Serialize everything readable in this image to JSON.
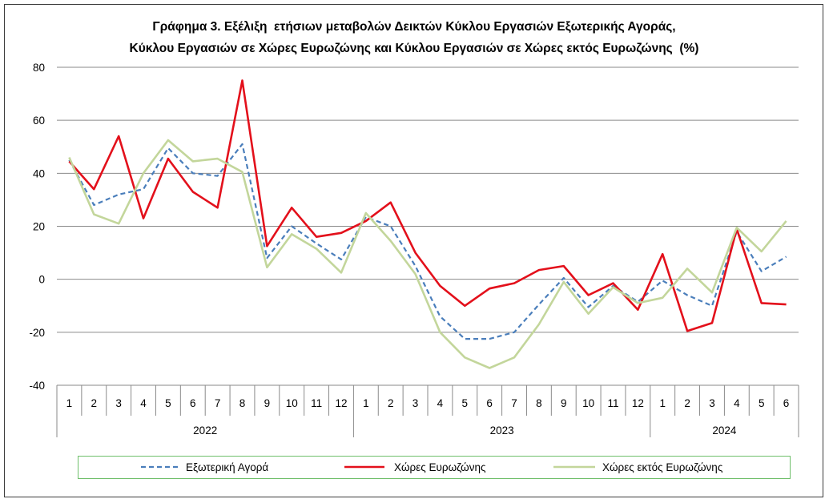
{
  "chart_data": {
    "type": "line",
    "title": [
      "Γράφημα 3. Εξέλιξη  ετήσιων μεταβολών Δεικτών Κύκλου Εργασιών Εξωτερικής Αγοράς,",
      "Κύκλου Εργασιών σε Χώρες Ευρωζώνης και Κύκλου Εργασιών σε Χώρες εκτός Ευρωζώνης  (%)"
    ],
    "xlabel": "",
    "ylabel": "",
    "ylim": [
      -40,
      80
    ],
    "yticks": [
      "80",
      "60",
      "40",
      "20",
      "0",
      "-20",
      "-40"
    ],
    "grid": true,
    "legend": "bottom",
    "groups": [
      {
        "label": "2022",
        "months": [
          "1",
          "2",
          "3",
          "4",
          "5",
          "6",
          "7",
          "8",
          "9",
          "10",
          "11",
          "12"
        ]
      },
      {
        "label": "2023",
        "months": [
          "1",
          "2",
          "3",
          "4",
          "5",
          "6",
          "7",
          "8",
          "9",
          "10",
          "11",
          "12"
        ]
      },
      {
        "label": "2024",
        "months": [
          "1",
          "2",
          "3",
          "4",
          "5",
          "6"
        ]
      }
    ],
    "series": [
      {
        "name": "Εξωτερική Αγορά",
        "color": "#4a7ebb",
        "style": "dashed",
        "values": [
          45,
          28,
          32,
          34,
          49.5,
          40,
          39,
          51,
          8,
          20,
          13.5,
          7.5,
          23.5,
          20,
          5,
          -14,
          -22.5,
          -22.5,
          -20,
          -9.5,
          0.5,
          -10.5,
          -2.5,
          -8.5,
          -0.5,
          -6,
          -10,
          18,
          3,
          8.5
        ]
      },
      {
        "name": "Χώρες Ευρωζώνης",
        "color": "#e3101b",
        "style": "solid",
        "values": [
          44.5,
          34,
          54,
          23,
          45.5,
          33,
          27,
          75,
          12.5,
          27,
          16,
          17.5,
          22,
          29,
          10,
          -2.5,
          -10,
          -3.5,
          -1.5,
          3.5,
          5,
          -6,
          -1.5,
          -11.5,
          9.5,
          -19.5,
          -16.5,
          19,
          -9,
          -9.5
        ]
      },
      {
        "name": "Χώρες εκτός Ευρωζώνης",
        "color": "#c3d69b",
        "style": "solid",
        "values": [
          46,
          24.5,
          21,
          40,
          52.5,
          44.5,
          45.5,
          40.5,
          4.5,
          17,
          11.5,
          2.5,
          25,
          14.5,
          2,
          -20,
          -29.5,
          -33.5,
          -29.5,
          -17,
          -1,
          -13,
          -3,
          -9,
          -7,
          4,
          -5,
          19.5,
          10.5,
          22
        ]
      }
    ]
  }
}
